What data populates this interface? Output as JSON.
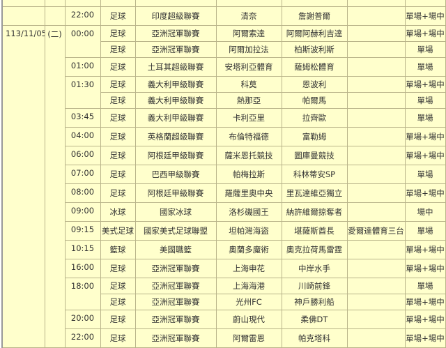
{
  "schedule": {
    "date": "113/11/05",
    "weekday": "(二)",
    "prev_rows": [
      {
        "time": "",
        "sport": "",
        "league": "",
        "home": "",
        "away": "",
        "channel": "",
        "type": ""
      },
      {
        "time": "22:00",
        "sport": "足球",
        "league": "印度超級聯賽",
        "home": "清奈",
        "away": "詹謝普爾",
        "channel": "",
        "type": "單場+場中"
      }
    ],
    "rows": [
      {
        "time": "00:00",
        "sport": "足球",
        "league": "亞洲冠軍聯賽",
        "home": "阿爾索達",
        "away": "阿爾阿赫利吉達",
        "channel": "",
        "type": "單場+場中"
      },
      {
        "time": "",
        "sport": "足球",
        "league": "亞洲冠軍聯賽",
        "home": "阿爾加拉法",
        "away": "柏斯波利斯",
        "channel": "",
        "type": "單場"
      },
      {
        "time": "01:00",
        "sport": "足球",
        "league": "土耳其超級聯賽",
        "home": "安塔利亞體育",
        "away": "薩姆松體育",
        "channel": "",
        "type": "單場"
      },
      {
        "time": "01:30",
        "sport": "足球",
        "league": "義大利甲級聯賽",
        "home": "科莫",
        "away": "恩波利",
        "channel": "",
        "type": "單場+場中"
      },
      {
        "time": "",
        "sport": "足球",
        "league": "義大利甲級聯賽",
        "home": "熱那亞",
        "away": "帕爾馬",
        "channel": "",
        "type": "單場"
      },
      {
        "time": "03:45",
        "sport": "足球",
        "league": "義大利甲級聯賽",
        "home": "卡利亞里",
        "away": "拉齊歐",
        "channel": "",
        "type": "單場"
      },
      {
        "time": "04:00",
        "sport": "足球",
        "league": "英格蘭超級聯賽",
        "home": "布倫特福德",
        "away": "富勒姆",
        "channel": "",
        "type": "單場+場中"
      },
      {
        "time": "06:00",
        "sport": "足球",
        "league": "阿根廷甲級聯賽",
        "home": "薩米恩托競技",
        "away": "圖庫曼競技",
        "channel": "",
        "type": "單場+場中"
      },
      {
        "time": "07:00",
        "sport": "足球",
        "league": "巴西甲級聯賽",
        "home": "帕梅拉斯",
        "away": "科林蒂安SP",
        "channel": "",
        "type": "單場"
      },
      {
        "time": "08:00",
        "sport": "足球",
        "league": "阿根廷甲級聯賽",
        "home": "羅薩里奧中央",
        "away": "里瓦達維亞獨立",
        "channel": "",
        "type": "單場+場中"
      },
      {
        "time": "09:00",
        "sport": "冰球",
        "league": "國家冰球",
        "home": "洛杉磯國王",
        "away": "納許維爾掠奪者",
        "channel": "",
        "type": "場中"
      },
      {
        "time": "09:15",
        "sport": "美式足球",
        "league": "國家美式足球聯盟",
        "home": "坦帕灣海盜",
        "away": "堪薩斯酋長",
        "channel": "愛爾達體育三台",
        "type": "單場"
      },
      {
        "time": "10:15",
        "sport": "籃球",
        "league": "美國職籃",
        "home": "奧蘭多魔術",
        "away": "奧克拉荷馬雷霆",
        "channel": "",
        "type": "單場+場中"
      },
      {
        "time": "16:00",
        "sport": "足球",
        "league": "亞洲冠軍聯賽",
        "home": "上海申花",
        "away": "中岸水手",
        "channel": "",
        "type": "單場+場中"
      },
      {
        "time": "18:00",
        "sport": "足球",
        "league": "亞洲冠軍聯賽",
        "home": "上海海港",
        "away": "川崎前鋒",
        "channel": "",
        "type": "單場"
      },
      {
        "time": "",
        "sport": "足球",
        "league": "亞洲冠軍聯賽",
        "home": "光州FC",
        "away": "神戶勝利船",
        "channel": "",
        "type": "單場+場中"
      },
      {
        "time": "20:00",
        "sport": "足球",
        "league": "亞洲冠軍聯賽",
        "home": "蔚山現代",
        "away": "柔佛DT",
        "channel": "",
        "type": "單場+場中"
      },
      {
        "time": "22:00",
        "sport": "足球",
        "league": "亞洲冠軍聯賽",
        "home": "阿爾雷恩",
        "away": "帕克塔科",
        "channel": "",
        "type": "單場+場中"
      }
    ]
  }
}
